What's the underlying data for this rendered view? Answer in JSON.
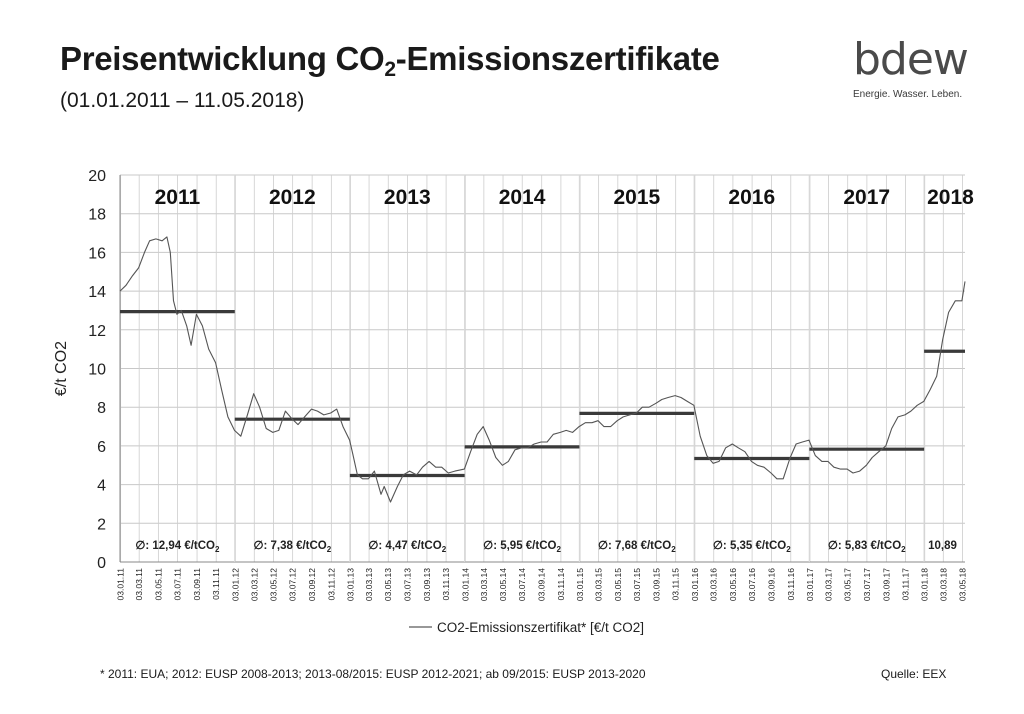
{
  "header": {
    "title_main": "Preisentwicklung CO",
    "title_sub": "2",
    "title_rest": "-Emissionszertifikate",
    "subtitle": "(01.01.2011 – 11.05.2018)"
  },
  "logo": {
    "word": "bdew",
    "tagline": "Energie. Wasser. Leben."
  },
  "footnote": "* 2011: EUA; 2012: EUSP 2008-2013; 2013-08/2015: EUSP 2012-2021; ab 09/2015: EUSP 2013-2020",
  "source": "Quelle: EEX",
  "chart_data": {
    "type": "line",
    "ylabel": "€/t CO2",
    "ylim": [
      0,
      20
    ],
    "y_ticks": [
      "0",
      "2",
      "4",
      "6",
      "8",
      "10",
      "12",
      "14",
      "16",
      "18",
      "20"
    ],
    "x_range": [
      "2011-01-01",
      "2018-05-11"
    ],
    "x_ticks": [
      "03.01.11",
      "03.03.11",
      "03.05.11",
      "03.07.11",
      "03.09.11",
      "03.11.11",
      "03.01.12",
      "03.03.12",
      "03.05.12",
      "03.07.12",
      "03.09.12",
      "03.11.12",
      "03.01.13",
      "03.03.13",
      "03.05.13",
      "03.07.13",
      "03.09.13",
      "03.11.13",
      "03.01.14",
      "03.03.14",
      "03.05.14",
      "03.07.14",
      "03.09.14",
      "03.11.14",
      "03.01.15",
      "03.03.15",
      "03.05.15",
      "03.07.15",
      "03.09.15",
      "03.11.15",
      "03.01.16",
      "03.03.16",
      "03.05.16",
      "03.07.16",
      "03.09.16",
      "03.11.16",
      "03.01.17",
      "03.03.17",
      "03.05.17",
      "03.07.17",
      "03.09.17",
      "03.11.17",
      "03.01.18",
      "03.03.18",
      "03.05.18"
    ],
    "grid": true,
    "legend": {
      "position": "bottom",
      "label": "CO2-Emissionszertifikat* [€/t CO2]"
    },
    "year_labels": [
      "2011",
      "2012",
      "2013",
      "2014",
      "2015",
      "2016",
      "2017",
      "2018"
    ],
    "averages": [
      {
        "year": "2011",
        "value": 12.94,
        "label": "∅: 12,94 €/tCO",
        "sub": "2"
      },
      {
        "year": "2012",
        "value": 7.38,
        "label": "∅: 7,38 €/tCO",
        "sub": "2"
      },
      {
        "year": "2013",
        "value": 4.47,
        "label": "∅: 4,47 €/tCO",
        "sub": "2"
      },
      {
        "year": "2014",
        "value": 5.95,
        "label": "∅: 5,95 €/tCO",
        "sub": "2"
      },
      {
        "year": "2015",
        "value": 7.68,
        "label": "∅: 7,68 €/tCO",
        "sub": "2"
      },
      {
        "year": "2016",
        "value": 5.35,
        "label": "∅: 5,35 €/tCO",
        "sub": "2"
      },
      {
        "year": "2017",
        "value": 5.83,
        "label": "∅: 5,83 €/tCO",
        "sub": "2"
      },
      {
        "year": "2018",
        "value": 10.89,
        "label": "10,89",
        "sub": ""
      }
    ],
    "series": [
      {
        "x": [
          "2011-01-01",
          "2011-01-20",
          "2011-02-10",
          "2011-03-01",
          "2011-03-20",
          "2011-04-05",
          "2011-04-25",
          "2011-05-15",
          "2011-05-30",
          "2011-06-10",
          "2011-06-20",
          "2011-07-01",
          "2011-07-15",
          "2011-08-01",
          "2011-08-15",
          "2011-09-01",
          "2011-09-20",
          "2011-10-10",
          "2011-11-01",
          "2011-11-20",
          "2011-12-10",
          "2011-12-31",
          "2012-01-20",
          "2012-02-10",
          "2012-03-01",
          "2012-03-20",
          "2012-04-10",
          "2012-05-01",
          "2012-05-20",
          "2012-06-10",
          "2012-07-01",
          "2012-07-20",
          "2012-08-10",
          "2012-09-01",
          "2012-09-20",
          "2012-10-10",
          "2012-11-01",
          "2012-11-20",
          "2012-12-10",
          "2012-12-31",
          "2013-01-10",
          "2013-01-25",
          "2013-02-10",
          "2013-03-01",
          "2013-03-20",
          "2013-04-10",
          "2013-04-20",
          "2013-05-10",
          "2013-06-01",
          "2013-06-20",
          "2013-07-10",
          "2013-08-01",
          "2013-08-20",
          "2013-09-10",
          "2013-10-01",
          "2013-10-20",
          "2013-11-10",
          "2013-12-01",
          "2013-12-31",
          "2014-01-20",
          "2014-02-10",
          "2014-03-01",
          "2014-03-20",
          "2014-04-10",
          "2014-05-01",
          "2014-05-20",
          "2014-06-10",
          "2014-07-01",
          "2014-07-20",
          "2014-08-10",
          "2014-09-01",
          "2014-09-20",
          "2014-10-10",
          "2014-11-01",
          "2014-11-20",
          "2014-12-10",
          "2014-12-31",
          "2015-01-20",
          "2015-02-10",
          "2015-03-01",
          "2015-03-20",
          "2015-04-10",
          "2015-05-01",
          "2015-05-20",
          "2015-06-10",
          "2015-07-01",
          "2015-07-20",
          "2015-08-10",
          "2015-09-01",
          "2015-09-20",
          "2015-10-10",
          "2015-11-01",
          "2015-11-20",
          "2015-12-10",
          "2015-12-31",
          "2016-01-20",
          "2016-02-10",
          "2016-03-01",
          "2016-03-20",
          "2016-04-10",
          "2016-05-01",
          "2016-05-20",
          "2016-06-10",
          "2016-07-01",
          "2016-07-20",
          "2016-08-10",
          "2016-09-01",
          "2016-09-20",
          "2016-10-10",
          "2016-11-01",
          "2016-11-20",
          "2016-12-10",
          "2016-12-31",
          "2017-01-20",
          "2017-02-10",
          "2017-03-01",
          "2017-03-20",
          "2017-04-10",
          "2017-05-01",
          "2017-05-20",
          "2017-06-10",
          "2017-07-01",
          "2017-07-20",
          "2017-08-10",
          "2017-09-01",
          "2017-09-20",
          "2017-10-10",
          "2017-11-01",
          "2017-11-20",
          "2017-12-10",
          "2017-12-31",
          "2018-01-20",
          "2018-02-10",
          "2018-03-01",
          "2018-03-20",
          "2018-04-10",
          "2018-05-01",
          "2018-05-11"
        ],
        "y": [
          14.0,
          14.3,
          14.8,
          15.2,
          16.0,
          16.6,
          16.7,
          16.6,
          16.8,
          16.0,
          13.5,
          12.8,
          13.0,
          12.2,
          11.2,
          12.8,
          12.2,
          11.0,
          10.3,
          8.9,
          7.5,
          6.8,
          6.5,
          7.6,
          8.7,
          8.0,
          6.9,
          6.7,
          6.8,
          7.8,
          7.4,
          7.1,
          7.5,
          7.9,
          7.8,
          7.6,
          7.7,
          7.9,
          7.0,
          6.3,
          5.6,
          4.5,
          4.3,
          4.3,
          4.7,
          3.5,
          3.9,
          3.1,
          3.9,
          4.5,
          4.7,
          4.5,
          4.9,
          5.2,
          4.9,
          4.9,
          4.6,
          4.7,
          4.8,
          5.7,
          6.6,
          7.0,
          6.3,
          5.4,
          5.0,
          5.2,
          5.8,
          5.9,
          5.9,
          6.1,
          6.2,
          6.2,
          6.6,
          6.7,
          6.8,
          6.7,
          7.0,
          7.2,
          7.2,
          7.3,
          7.0,
          7.0,
          7.3,
          7.5,
          7.6,
          7.7,
          8.0,
          8.0,
          8.2,
          8.4,
          8.5,
          8.6,
          8.5,
          8.3,
          8.1,
          6.5,
          5.5,
          5.1,
          5.2,
          5.9,
          6.1,
          5.9,
          5.7,
          5.2,
          5.0,
          4.9,
          4.6,
          4.3,
          4.3,
          5.4,
          6.1,
          6.2,
          6.3,
          5.5,
          5.2,
          5.2,
          4.9,
          4.8,
          4.8,
          4.6,
          4.7,
          5.0,
          5.4,
          5.7,
          6.0,
          6.9,
          7.5,
          7.6,
          7.8,
          8.1,
          8.3,
          8.9,
          9.6,
          11.5,
          12.9,
          13.5,
          13.5,
          14.5
        ]
      }
    ]
  }
}
